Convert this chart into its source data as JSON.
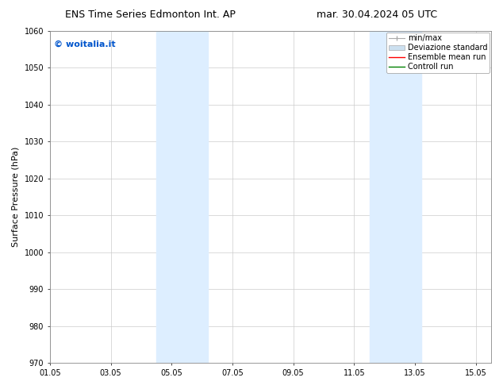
{
  "title_left": "ENS Time Series Edmonton Int. AP",
  "title_right": "mar. 30.04.2024 05 UTC",
  "ylabel": "Surface Pressure (hPa)",
  "ylim": [
    970,
    1060
  ],
  "yticks": [
    970,
    980,
    990,
    1000,
    1010,
    1020,
    1030,
    1040,
    1050,
    1060
  ],
  "xtick_positions": [
    0,
    2,
    4,
    6,
    8,
    10,
    12,
    14
  ],
  "xtick_labels": [
    "01.05",
    "03.05",
    "05.05",
    "07.05",
    "09.05",
    "11.05",
    "13.05",
    "15.05"
  ],
  "xlim": [
    0,
    14.5
  ],
  "shaded_bands": [
    {
      "x_start": 3.5,
      "x_end": 5.2
    },
    {
      "x_start": 10.5,
      "x_end": 12.2
    }
  ],
  "shaded_color": "#ddeeff",
  "watermark_text": "© woitalia.it",
  "watermark_color": "#0055cc",
  "legend_labels": [
    "min/max",
    "Deviazione standard",
    "Ensemble mean run",
    "Controll run"
  ],
  "legend_colors": [
    "#aaaaaa",
    "#cce0f0",
    "red",
    "green"
  ],
  "bg_color": "#ffffff",
  "grid_color": "#cccccc",
  "title_fontsize": 9,
  "tick_fontsize": 7,
  "ylabel_fontsize": 8,
  "watermark_fontsize": 8,
  "legend_fontsize": 7
}
